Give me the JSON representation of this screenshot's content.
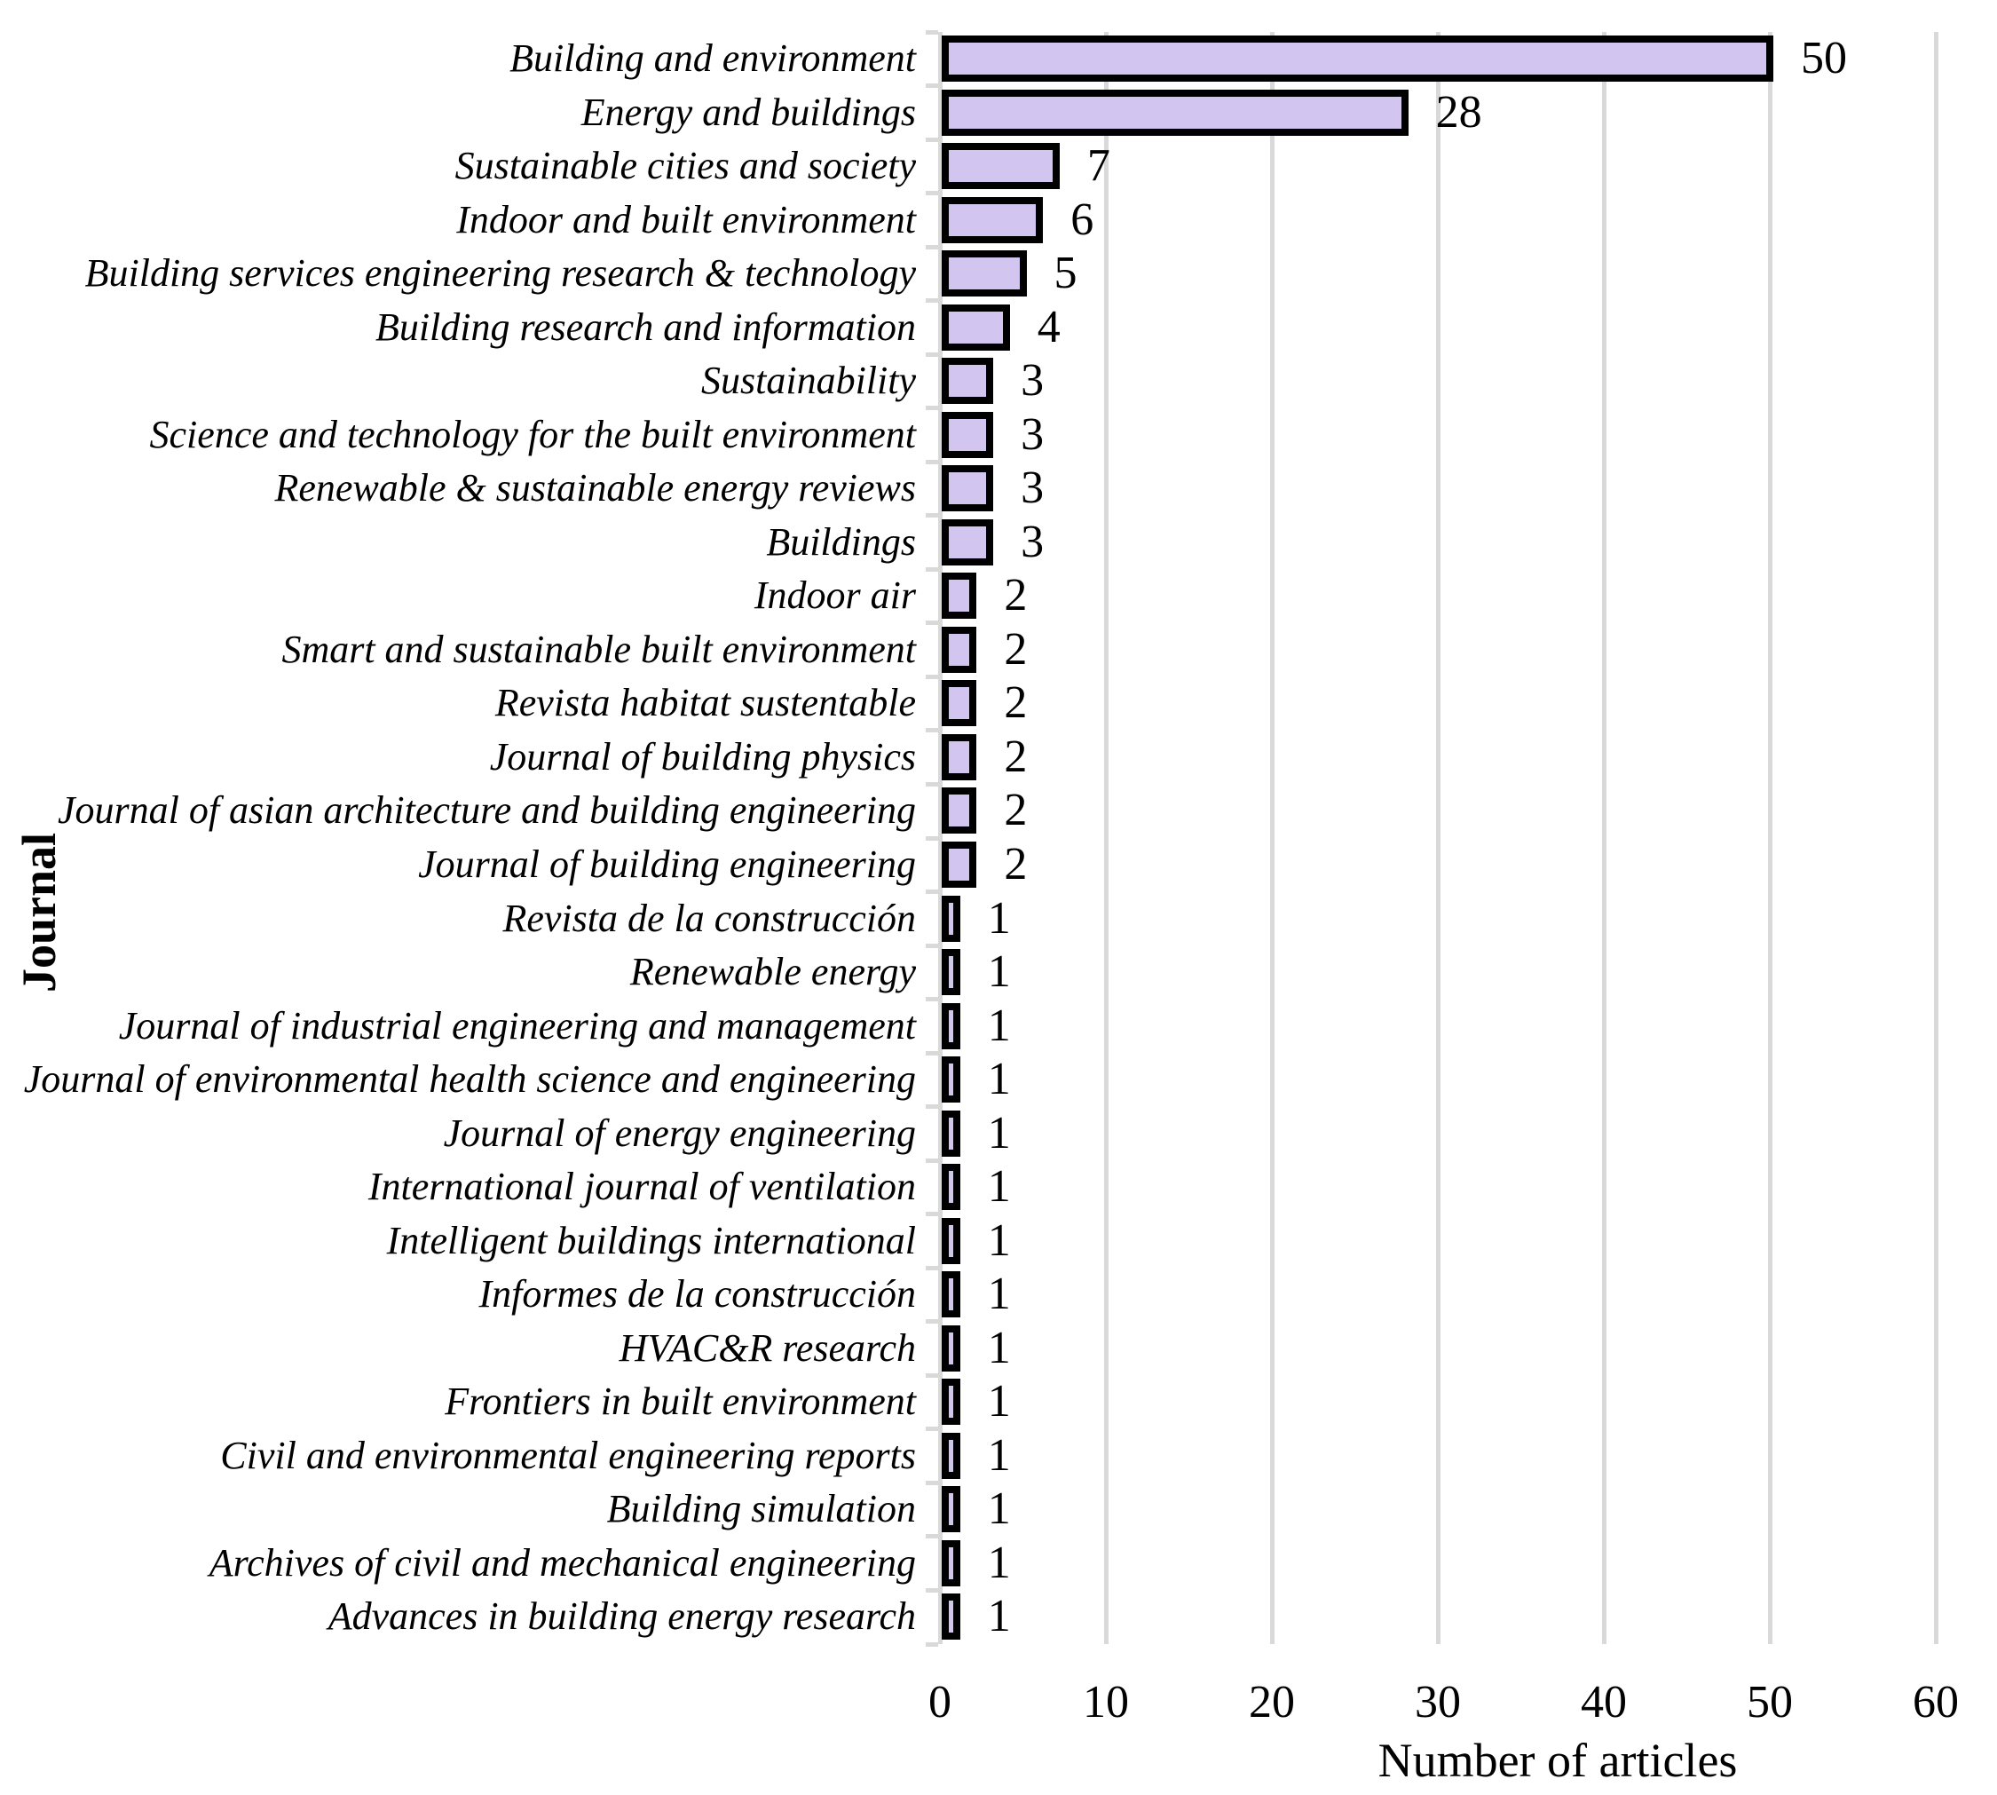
{
  "chart_data": {
    "type": "bar",
    "orientation": "horizontal",
    "title": "",
    "xlabel": "Number of articles",
    "ylabel": "Journal",
    "categories": [
      "Building and environment",
      "Energy and buildings",
      "Sustainable cities and society",
      "Indoor and built environment",
      "Building services engineering research & technology",
      "Building research and information",
      "Sustainability",
      "Science and technology for the built environment",
      "Renewable & sustainable energy reviews",
      "Buildings",
      "Indoor air",
      "Smart and sustainable built environment",
      "Revista habitat sustentable",
      "Journal of building physics",
      "Journal of asian architecture and building engineering",
      "Journal of building engineering",
      "Revista de la construcción",
      "Renewable energy",
      "Journal of industrial engineering and management",
      "Journal of environmental health science and engineering",
      "Journal of energy engineering",
      "International journal of ventilation",
      "Intelligent buildings international",
      "Informes de la construcción",
      "HVAC&R research",
      "Frontiers in built environment",
      "Civil and environmental engineering reports",
      "Building simulation",
      "Archives of civil and mechanical engineering",
      "Advances in building energy research"
    ],
    "values": [
      50,
      28,
      7,
      6,
      5,
      4,
      3,
      3,
      3,
      3,
      2,
      2,
      2,
      2,
      2,
      2,
      1,
      1,
      1,
      1,
      1,
      1,
      1,
      1,
      1,
      1,
      1,
      1,
      1,
      1
    ],
    "data_labels": [
      50,
      28,
      7,
      6,
      5,
      4,
      3,
      3,
      3,
      3,
      2,
      2,
      2,
      2,
      2,
      2,
      1,
      1,
      1,
      1,
      1,
      1,
      1,
      1,
      1,
      1,
      1,
      1,
      1,
      1
    ],
    "xlim": [
      0,
      60
    ],
    "xticks": [
      "0",
      "10",
      "20",
      "30",
      "40",
      "50",
      "60"
    ],
    "grid": "vertical",
    "legend": "none",
    "colors": {
      "bar_fill": "#D2C6F0",
      "bar_border": "#000000",
      "gridline": "#D9D9D9",
      "axis_line": "#D9D9D9",
      "text": "#000000"
    }
  }
}
